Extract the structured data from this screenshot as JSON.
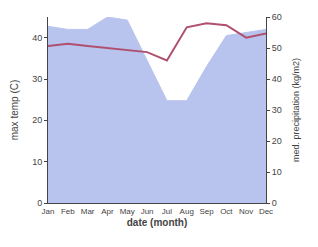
{
  "chart_data": {
    "type": "line",
    "categories": [
      "Jan",
      "Feb",
      "Mar",
      "Apr",
      "May",
      "Jun",
      "Jul",
      "Aug",
      "Sep",
      "Oct",
      "Nov",
      "Dec"
    ],
    "xlabel": "date (month)",
    "ylabel": "max temp (C)",
    "y2label": "med. precipitation (kg/m2)",
    "series": [
      {
        "type": "area",
        "axis": "y2",
        "color": "#b8c4ee",
        "values": [
          57,
          56,
          56,
          60,
          59,
          46,
          33,
          33,
          44,
          54,
          55,
          56
        ]
      },
      {
        "type": "line",
        "axis": "y",
        "color": "#b05070",
        "values": [
          38,
          38.5,
          38,
          37.5,
          37,
          36.5,
          34.5,
          42.5,
          43.5,
          43,
          40,
          41
        ]
      }
    ],
    "ylim": [
      0,
      45
    ],
    "yticks": [
      0,
      10,
      20,
      30,
      40
    ],
    "y2lim": [
      0,
      60
    ],
    "y2ticks": [
      0,
      10,
      20,
      30,
      40,
      50,
      60
    ],
    "grid": false
  }
}
